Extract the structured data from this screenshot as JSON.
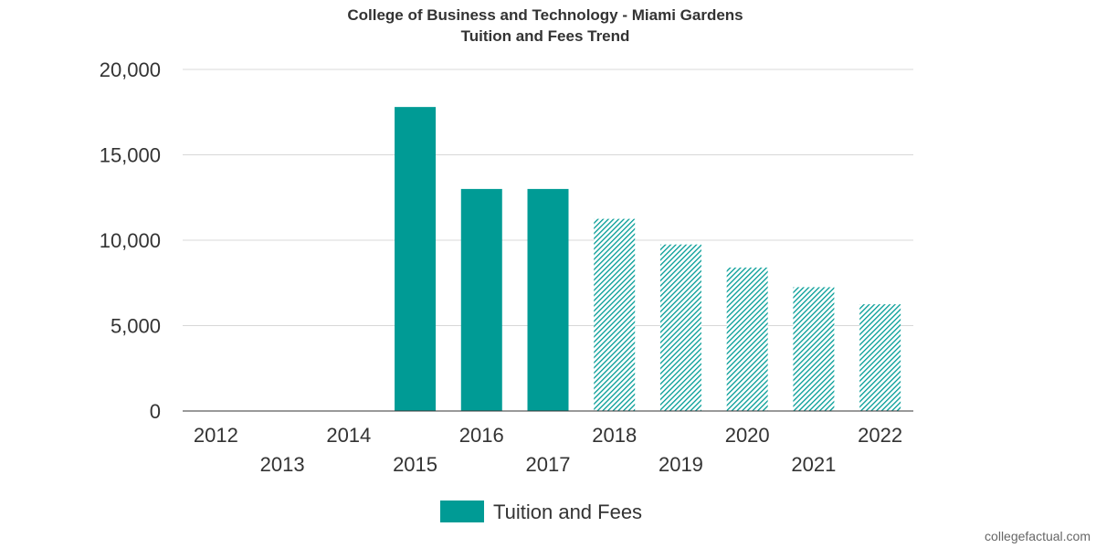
{
  "chart_data": {
    "type": "bar",
    "title": "College of Business and Technology - Miami Gardens",
    "subtitle": "Tuition and Fees Trend",
    "categories": [
      "2012",
      "2013",
      "2014",
      "2015",
      "2016",
      "2017",
      "2018",
      "2019",
      "2020",
      "2021",
      "2022"
    ],
    "series": [
      {
        "name": "Tuition and Fees",
        "values": [
          null,
          null,
          null,
          17800,
          13000,
          13000,
          11250,
          9750,
          8400,
          7250,
          6250
        ],
        "projected_from_index": 6
      }
    ],
    "ylim": [
      0,
      20000
    ],
    "yticks": [
      {
        "value": 0,
        "label": "0"
      },
      {
        "value": 5000,
        "label": "5,000"
      },
      {
        "value": 10000,
        "label": "10,000"
      },
      {
        "value": 15000,
        "label": "15,000"
      },
      {
        "value": 20000,
        "label": "20,000"
      }
    ],
    "grid": true,
    "legend_position": "bottom-center",
    "colors": {
      "bar": "#009b95",
      "text": "#333333",
      "grid": "#d8d8d8"
    }
  },
  "credit": "collegefactual.com"
}
